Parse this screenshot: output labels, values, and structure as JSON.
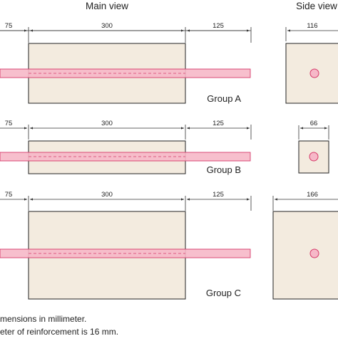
{
  "headers": {
    "main_view": "Main view",
    "side_view": "Side view"
  },
  "colors": {
    "block_fill": "#f3ebdf",
    "block_stroke": "#222222",
    "bar_fill": "#f6b8c8",
    "bar_stroke": "#d63a6a",
    "dim_stroke": "#333333"
  },
  "groups": [
    {
      "label": "Group A",
      "main_dims": [
        "75",
        "300",
        "125"
      ],
      "side_dim": "116"
    },
    {
      "label": "Group B",
      "main_dims": [
        "75",
        "300",
        "125"
      ],
      "side_dim": "66"
    },
    {
      "label": "Group C",
      "main_dims": [
        "75",
        "300",
        "125"
      ],
      "side_dim": "166"
    }
  ],
  "notes": [
    "mensions in millimeter.",
    "eter of reinforcement is 16 mm."
  ]
}
